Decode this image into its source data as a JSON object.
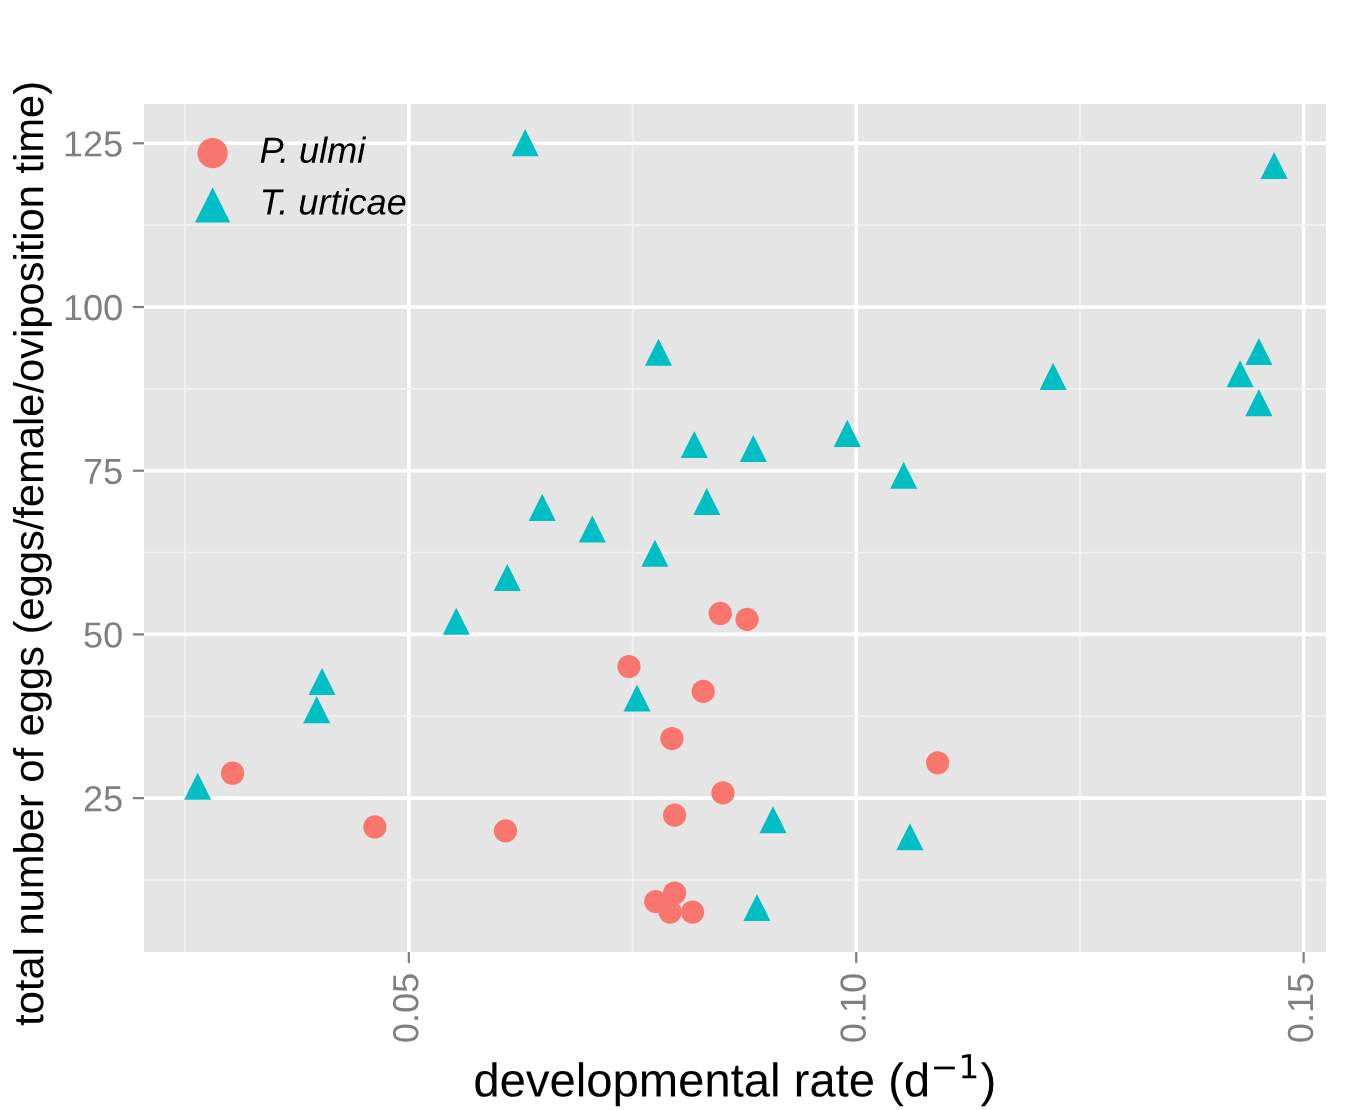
{
  "chart_data": {
    "type": "scatter",
    "xlabel": "developmental rate (d$^{−1}$)",
    "ylabel": "total number of eggs (eggs/female/oviposition time)",
    "xlim": [
      0.0204,
      0.1525
    ],
    "ylim": [
      1.5,
      131
    ],
    "xticks": [
      0.05,
      {
        "value": 0.1,
        "label": "0.10"
      },
      0.15
    ],
    "yticks": [
      25,
      50,
      75,
      100,
      125
    ],
    "grid": true,
    "legend": "top left",
    "series": [
      {
        "name": "P. ulmi",
        "color": "#f8766d",
        "marker": "circle",
        "x": [
          0.0303,
          0.0462,
          0.0608,
          0.0746,
          0.0829,
          0.0794,
          0.0851,
          0.0797,
          0.0848,
          0.0878,
          0.1091,
          0.0776,
          0.0797,
          0.0792,
          0.0817
        ],
        "values": [
          28.8,
          20.6,
          20.0,
          45.1,
          41.3,
          34.1,
          25.8,
          22.4,
          53.2,
          52.3,
          30.4,
          9.2,
          10.5,
          7.6,
          7.6
        ]
      },
      {
        "name": "T. urticae",
        "color": "#00bfc4",
        "marker": "triangle",
        "x": [
          0.063,
          0.0779,
          0.0819,
          0.0649,
          0.0833,
          0.0705,
          0.0775,
          0.061,
          0.0553,
          0.0403,
          0.0397,
          0.0264,
          0.0755,
          0.1467,
          0.145,
          0.122,
          0.1429,
          0.145,
          0.0885,
          0.099,
          0.1053,
          0.0907,
          0.106,
          0.0889
        ],
        "values": [
          125.1,
          93.1,
          79.0,
          69.4,
          70.3,
          66.1,
          62.4,
          58.7,
          52.0,
          42.8,
          38.5,
          26.8,
          40.3,
          121.6,
          93.2,
          89.4,
          89.8,
          85.4,
          78.4,
          80.7,
          74.3,
          21.7,
          19.1,
          8.3
        ]
      }
    ]
  }
}
